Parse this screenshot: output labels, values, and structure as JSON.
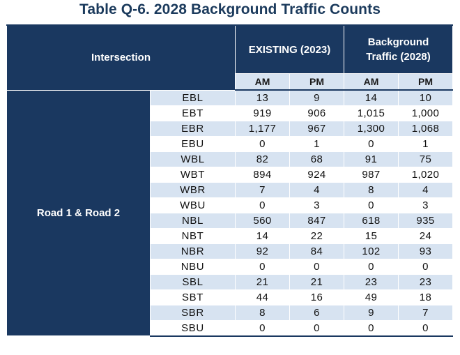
{
  "title": "Table Q-6. 2028 Background Traffic Counts",
  "header": {
    "intersection": "Intersection",
    "existing": "EXISTING (2023)",
    "background_line1": "Background",
    "background_line2": "Traffic (2028)",
    "am": "AM",
    "pm": "PM"
  },
  "intersection_name": "Road 1 & Road 2",
  "rows": [
    {
      "movement": "EBL",
      "ex_am": "13",
      "ex_pm": "9",
      "bg_am": "14",
      "bg_pm": "10"
    },
    {
      "movement": "EBT",
      "ex_am": "919",
      "ex_pm": "906",
      "bg_am": "1,015",
      "bg_pm": "1,000"
    },
    {
      "movement": "EBR",
      "ex_am": "1,177",
      "ex_pm": "967",
      "bg_am": "1,300",
      "bg_pm": "1,068"
    },
    {
      "movement": "EBU",
      "ex_am": "0",
      "ex_pm": "1",
      "bg_am": "0",
      "bg_pm": "1"
    },
    {
      "movement": "WBL",
      "ex_am": "82",
      "ex_pm": "68",
      "bg_am": "91",
      "bg_pm": "75"
    },
    {
      "movement": "WBT",
      "ex_am": "894",
      "ex_pm": "924",
      "bg_am": "987",
      "bg_pm": "1,020"
    },
    {
      "movement": "WBR",
      "ex_am": "7",
      "ex_pm": "4",
      "bg_am": "8",
      "bg_pm": "4"
    },
    {
      "movement": "WBU",
      "ex_am": "0",
      "ex_pm": "3",
      "bg_am": "0",
      "bg_pm": "3"
    },
    {
      "movement": "NBL",
      "ex_am": "560",
      "ex_pm": "847",
      "bg_am": "618",
      "bg_pm": "935"
    },
    {
      "movement": "NBT",
      "ex_am": "14",
      "ex_pm": "22",
      "bg_am": "15",
      "bg_pm": "24"
    },
    {
      "movement": "NBR",
      "ex_am": "92",
      "ex_pm": "84",
      "bg_am": "102",
      "bg_pm": "93"
    },
    {
      "movement": "NBU",
      "ex_am": "0",
      "ex_pm": "0",
      "bg_am": "0",
      "bg_pm": "0"
    },
    {
      "movement": "SBL",
      "ex_am": "21",
      "ex_pm": "21",
      "bg_am": "23",
      "bg_pm": "23"
    },
    {
      "movement": "SBT",
      "ex_am": "44",
      "ex_pm": "16",
      "bg_am": "49",
      "bg_pm": "18"
    },
    {
      "movement": "SBR",
      "ex_am": "8",
      "ex_pm": "6",
      "bg_am": "9",
      "bg_pm": "7"
    },
    {
      "movement": "SBU",
      "ex_am": "0",
      "ex_pm": "0",
      "bg_am": "0",
      "bg_pm": "0"
    }
  ]
}
